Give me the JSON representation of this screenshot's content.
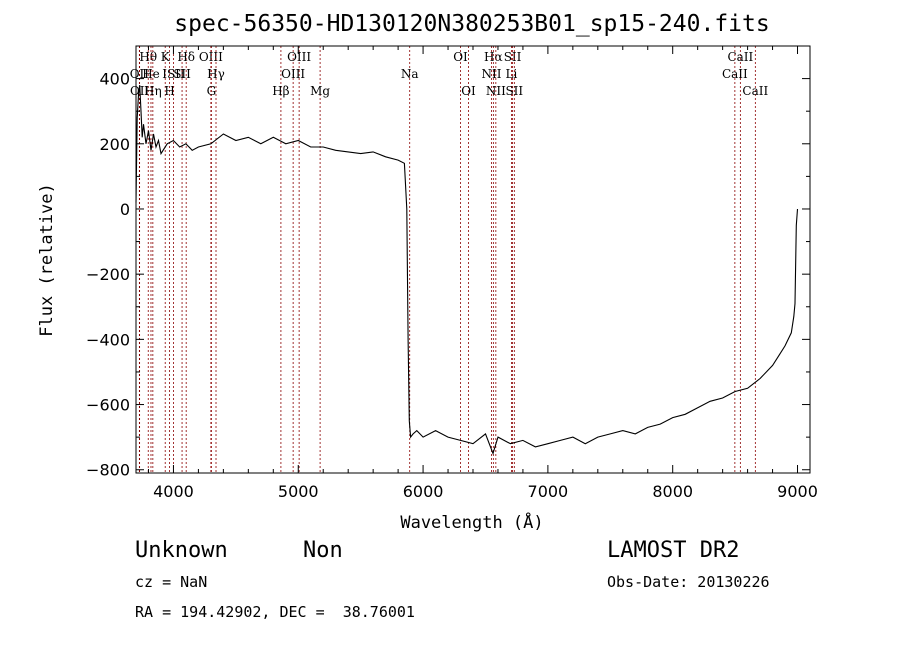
{
  "chart_data": {
    "type": "line",
    "title": "spec-56350-HD130120N380253B01_sp15-240.fits",
    "xlabel": "Wavelength (Å)",
    "ylabel": "Flux (relative)",
    "xlim": [
      3700,
      9100
    ],
    "ylim": [
      -810,
      500
    ],
    "x_ticks": [
      4000,
      5000,
      6000,
      7000,
      8000,
      9000
    ],
    "y_ticks": [
      -800,
      -600,
      -400,
      -200,
      0,
      200,
      400
    ],
    "grid": false,
    "series": [
      {
        "x": [
          3700,
          3710,
          3720,
          3730,
          3740,
          3750,
          3760,
          3780,
          3800,
          3820,
          3840,
          3860,
          3880,
          3900,
          3950,
          4000,
          4050,
          4100,
          4150,
          4200,
          4300,
          4400,
          4500,
          4600,
          4700,
          4800,
          4900,
          5000,
          5100,
          5200,
          5300,
          5400,
          5500,
          5600,
          5700,
          5800,
          5850,
          5870,
          5880,
          5890,
          5900,
          5920,
          5950,
          6000,
          6100,
          6200,
          6300,
          6400,
          6500,
          6560,
          6600,
          6700,
          6800,
          6900,
          7000,
          7100,
          7200,
          7300,
          7400,
          7500,
          7600,
          7700,
          7800,
          7900,
          8000,
          8100,
          8200,
          8300,
          8400,
          8500,
          8600,
          8700,
          8800,
          8850,
          8900,
          8950,
          8970,
          8980,
          8990,
          9000
        ],
        "y": [
          20,
          280,
          350,
          380,
          300,
          220,
          260,
          200,
          240,
          180,
          230,
          190,
          210,
          170,
          200,
          210,
          190,
          200,
          180,
          190,
          200,
          230,
          210,
          220,
          200,
          220,
          200,
          210,
          190,
          190,
          180,
          175,
          170,
          175,
          160,
          150,
          140,
          0,
          -400,
          -650,
          -700,
          -690,
          -680,
          -700,
          -680,
          -700,
          -710,
          -720,
          -690,
          -750,
          -700,
          -720,
          -710,
          -730,
          -720,
          -710,
          -700,
          -720,
          -700,
          -690,
          -680,
          -690,
          -670,
          -660,
          -640,
          -630,
          -610,
          -590,
          -580,
          -560,
          -550,
          -520,
          -480,
          -450,
          -420,
          -380,
          -330,
          -290,
          -50,
          0
        ]
      }
    ],
    "lines": [
      {
        "name": "OII",
        "wl": 3727,
        "row": 1
      },
      {
        "name": "OII",
        "wl": 3729,
        "row": 2
      },
      {
        "name": "Hθ",
        "wl": 3798,
        "row": 0
      },
      {
        "name": "He",
        "wl": 3820,
        "row": 1
      },
      {
        "name": "Hη",
        "wl": 3835,
        "row": 2
      },
      {
        "name": "K",
        "wl": 3934,
        "row": 0
      },
      {
        "name": "H",
        "wl": 3969,
        "row": 2
      },
      {
        "name": "ISII",
        "wl": 4000,
        "row": 1
      },
      {
        "name": "Hδ",
        "wl": 4102,
        "row": 0
      },
      {
        "name": "SII",
        "wl": 4069,
        "row": 1
      },
      {
        "name": "OIII",
        "wl": 4300,
        "row": 0
      },
      {
        "name": "Hγ",
        "wl": 4341,
        "row": 1
      },
      {
        "name": "G",
        "wl": 4304,
        "row": 2
      },
      {
        "name": "Hβ",
        "wl": 4861,
        "row": 2
      },
      {
        "name": "OIII",
        "wl": 4959,
        "row": 1
      },
      {
        "name": "OIII",
        "wl": 5007,
        "row": 0
      },
      {
        "name": "Mg",
        "wl": 5175,
        "row": 2
      },
      {
        "name": "Na",
        "wl": 5893,
        "row": 1
      },
      {
        "name": "OI",
        "wl": 6300,
        "row": 0
      },
      {
        "name": "OI",
        "wl": 6364,
        "row": 2
      },
      {
        "name": "Hα",
        "wl": 6563,
        "row": 0
      },
      {
        "name": "NII",
        "wl": 6548,
        "row": 1
      },
      {
        "name": "NII",
        "wl": 6583,
        "row": 2
      },
      {
        "name": "SII",
        "wl": 6717,
        "row": 0
      },
      {
        "name": "Li",
        "wl": 6708,
        "row": 1
      },
      {
        "name": "SII",
        "wl": 6731,
        "row": 2
      },
      {
        "name": "CaII",
        "wl": 8542,
        "row": 0
      },
      {
        "name": "CaII",
        "wl": 8498,
        "row": 1
      },
      {
        "name": "CaII",
        "wl": 8662,
        "row": 2
      }
    ],
    "line_color": "#8b0000"
  },
  "info": {
    "class": "Unknown",
    "subclass": "Non",
    "survey": "LAMOST DR2",
    "cz": "cz = NaN",
    "obs_date": "Obs-Date: 20130226",
    "coords": "RA = 194.42902, DEC =  38.76001"
  }
}
